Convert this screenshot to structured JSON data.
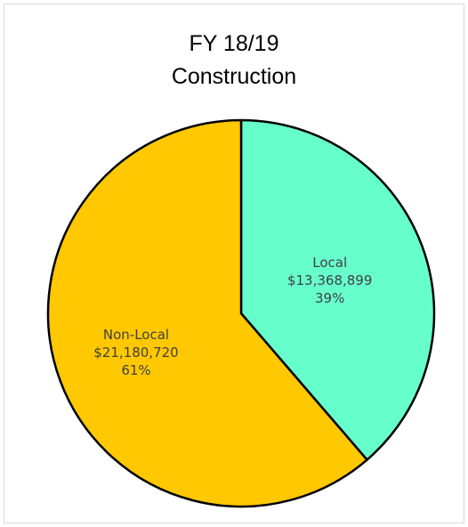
{
  "chart_data": {
    "type": "pie",
    "title_lines": [
      "FY 18/19",
      "Construction"
    ],
    "slices": [
      {
        "name": "Local",
        "value": 13368899,
        "value_label": "$13,368,899",
        "percent_label": "39%",
        "color": "#66ffcc"
      },
      {
        "name": "Non-Local",
        "value": 21180720,
        "value_label": "$21,180,720",
        "percent_label": "61%",
        "color": "#ffc800"
      }
    ],
    "start_angle_deg": 0,
    "direction": "clockwise",
    "edge_color": "#000000",
    "legend": "none"
  }
}
